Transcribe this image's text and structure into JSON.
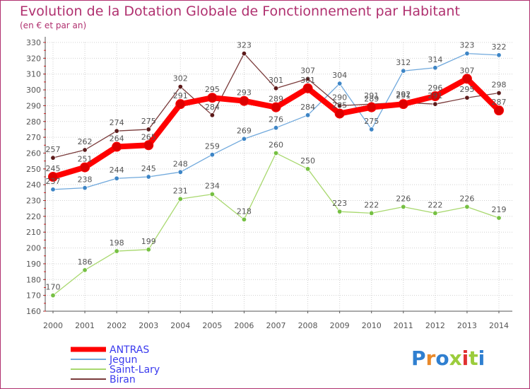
{
  "chart_data": {
    "type": "line",
    "title": "Evolution de la Dotation Globale de Fonctionnement par Habitant",
    "subtitle": "(en € et par an)",
    "xlabel": "",
    "ylabel": "",
    "categories": [
      "2000",
      "2001",
      "2002",
      "2003",
      "2004",
      "2005",
      "2006",
      "2007",
      "2008",
      "2009",
      "2010",
      "2011",
      "2012",
      "2013",
      "2014"
    ],
    "ylim": [
      160,
      330
    ],
    "ytick_step": 10,
    "grid": true,
    "legend_position": "bottom-left",
    "series": [
      {
        "name": "ANTRAS",
        "color": "#ff0000",
        "marker_color": "#cc0000",
        "values": [
          245,
          251,
          264,
          265,
          291,
          295,
          293,
          289,
          301,
          285,
          289,
          291,
          296,
          307,
          287
        ]
      },
      {
        "name": "Jegun",
        "color": "#6fa8dc",
        "marker_color": "#3d85c6",
        "values": [
          237,
          238,
          244,
          245,
          248,
          259,
          269,
          276,
          284,
          304,
          275,
          312,
          314,
          323,
          322
        ]
      },
      {
        "name": "Saint-Lary",
        "color": "#a8d86e",
        "marker_color": "#76c043",
        "values": [
          170,
          186,
          198,
          199,
          231,
          234,
          218,
          260,
          250,
          223,
          222,
          226,
          222,
          226,
          219
        ]
      },
      {
        "name": "Biran",
        "color": "#7a3b3b",
        "marker_color": "#5c1a1a",
        "values": [
          257,
          262,
          274,
          275,
          302,
          284,
          323,
          301,
          307,
          290,
          291,
          292,
          291,
          295,
          298
        ]
      }
    ]
  },
  "logo": {
    "text": "Proxiti"
  },
  "colors": {
    "title": "#b0306f",
    "axis": "#555555",
    "grid": "#cccccc",
    "border": "#b0306f"
  }
}
